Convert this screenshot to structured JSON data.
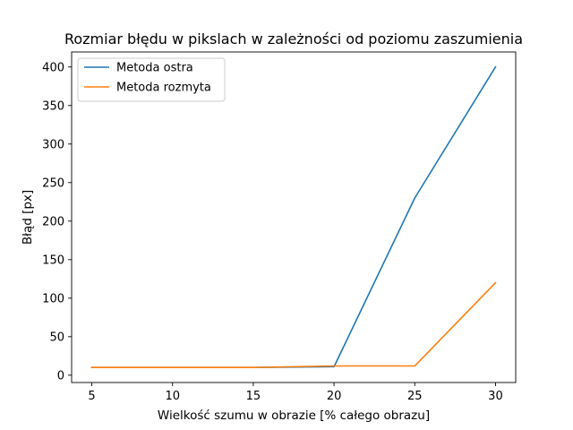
{
  "chart_data": {
    "type": "line",
    "title": "Rozmiar błędu w pikslach w zależności od poziomu zaszumienia",
    "xlabel": "Wielkość szumu w obrazie [% całego obrazu]",
    "ylabel": "Błąd [px]",
    "x": [
      5,
      10,
      15,
      20,
      25,
      30
    ],
    "xlim": [
      3.75,
      31.25
    ],
    "ylim": [
      -9.5,
      419.5
    ],
    "xticks": [
      5,
      10,
      15,
      20,
      25,
      30
    ],
    "yticks": [
      0,
      50,
      100,
      150,
      200,
      250,
      300,
      350,
      400
    ],
    "grid": false,
    "legend_position": "top-left",
    "series": [
      {
        "name": "Metoda ostra",
        "color": "#1f77b4",
        "values": [
          10,
          10,
          10,
          11,
          230,
          400
        ]
      },
      {
        "name": "Metoda rozmyta",
        "color": "#ff7f0e",
        "values": [
          10,
          10,
          10,
          12,
          12,
          120
        ]
      }
    ]
  }
}
